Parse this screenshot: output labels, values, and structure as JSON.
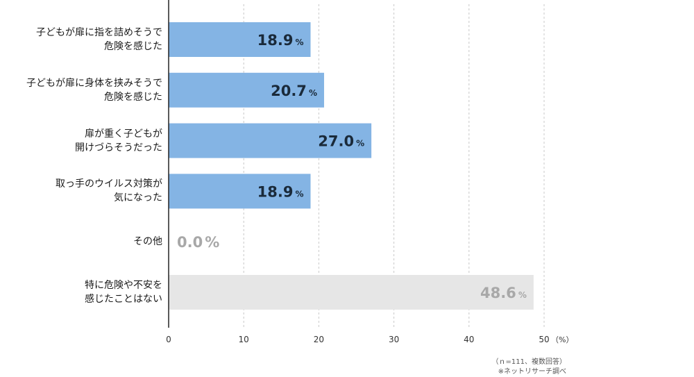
{
  "chart_data": {
    "type": "bar",
    "orientation": "horizontal",
    "categories": [
      [
        "子どもが扉に指を詰めそうで",
        "危険を感じた"
      ],
      [
        "子どもが扉に身体を挟みそうで",
        "危険を感じた"
      ],
      [
        "扉が重く子どもが",
        "開けづらそうだった"
      ],
      [
        "取っ手のウイルス対策が",
        "気になった"
      ],
      [
        "その他"
      ],
      [
        "特に危険や不安を",
        "感じたことはない"
      ]
    ],
    "values": [
      18.9,
      20.7,
      27.0,
      18.9,
      0.0,
      48.6
    ],
    "value_labels": [
      "18.9",
      "20.7",
      "27.0",
      "18.9",
      "0.0",
      "48.6"
    ],
    "value_unit": "%",
    "bar_colors": [
      "#84b4e4",
      "#84b4e4",
      "#84b4e4",
      "#84b4e4",
      "#84b4e4",
      "#e6e6e6"
    ],
    "label_colors": [
      "#1a2a3a",
      "#1a2a3a",
      "#1a2a3a",
      "#1a2a3a",
      "#a8a8a8",
      "#a8a8a8"
    ],
    "xlim": [
      0,
      50
    ],
    "xticks": [
      "0",
      "10",
      "20",
      "30",
      "40",
      "50"
    ],
    "x_unit": "（%）",
    "grid": true,
    "notes": [
      "（ｎ=111、複数回答）",
      "※ネットリサーチ調べ"
    ]
  }
}
